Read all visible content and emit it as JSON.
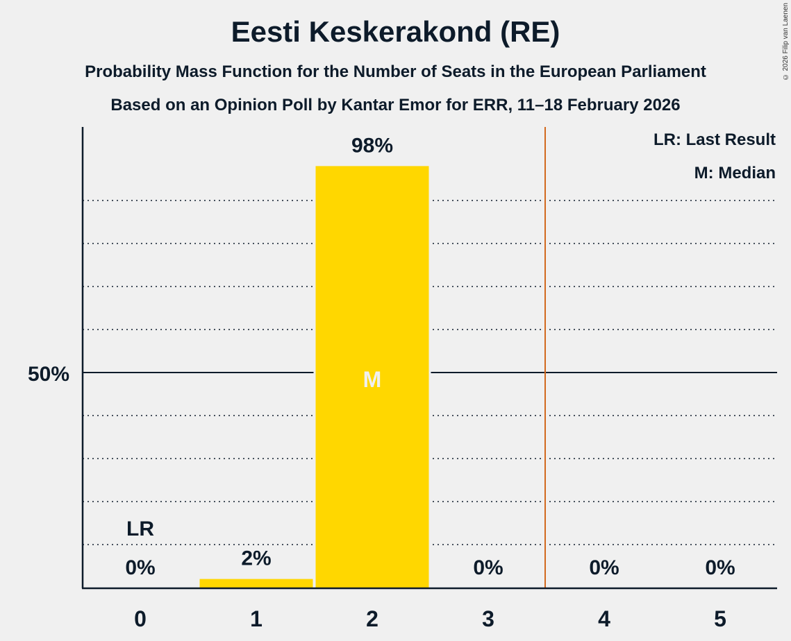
{
  "header": {
    "title": "Eesti Keskerakond (RE)",
    "subtitle1": "Probability Mass Function for the Number of Seats in the European Parliament",
    "subtitle2": "Based on an Opinion Poll by Kantar Emor for ERR, 11–18 February 2026",
    "copyright": "© 2026 Filip van Laenen"
  },
  "legend": {
    "last_result": "LR: Last Result",
    "median": "M: Median"
  },
  "colors": {
    "bar": "#ffd700",
    "last_result_line": "#d2691e",
    "text": "#0d1b2a",
    "background": "#f0f0f0"
  },
  "chart_data": {
    "type": "bar",
    "title": "Eesti Keskerakond (RE)",
    "subtitle": "Probability Mass Function for the Number of Seats in the European Parliament",
    "xlabel": "",
    "ylabel": "",
    "categories": [
      "0",
      "1",
      "2",
      "3",
      "4",
      "5"
    ],
    "values": [
      0,
      2,
      98,
      0,
      0,
      0
    ],
    "value_labels": [
      "0%",
      "2%",
      "98%",
      "0%",
      "0%",
      "0%"
    ],
    "ylim": [
      0,
      100
    ],
    "y_ticks": [
      {
        "value": 50,
        "label": "50%"
      }
    ],
    "grid": "dotted every 10%",
    "last_result": {
      "seats": 0,
      "label": "LR"
    },
    "median": {
      "seats": 2,
      "label": "M"
    },
    "threshold_line_between": [
      3,
      4
    ],
    "legend_position": "top-right"
  }
}
